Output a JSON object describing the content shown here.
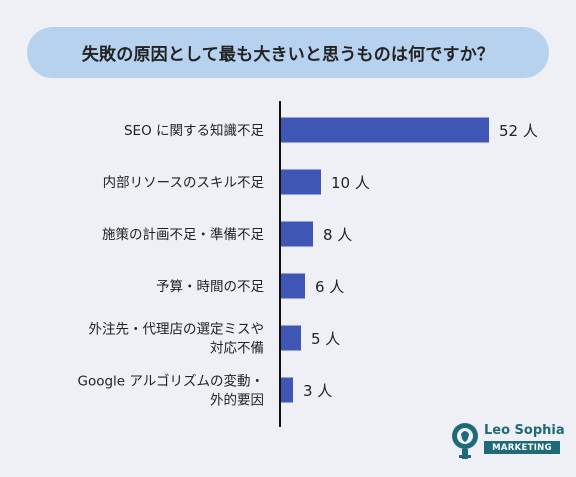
{
  "title": "失敗の原因として最も大きいと思うものは何ですか？",
  "chart_data": {
    "type": "bar",
    "orientation": "horizontal",
    "categories": [
      [
        "SEO に関する知識不足"
      ],
      [
        "内部リソースのスキル不足"
      ],
      [
        "施策の計画不足・準備不足"
      ],
      [
        "予算・時間の不足"
      ],
      [
        "外注先・代理店の選定ミスや",
        "対応不備"
      ],
      [
        "Google アルゴリズムの変動・",
        "外的要因"
      ]
    ],
    "values": [
      52,
      10,
      8,
      6,
      5,
      3
    ],
    "value_labels": [
      "52 人",
      "10 人",
      "8 人",
      "6 人",
      "5 人",
      "3 人"
    ],
    "unit": "人",
    "xlim": [
      0,
      60
    ],
    "grid": false,
    "bar_color": "#3f56b5"
  },
  "logo": {
    "name": "Leo Sophia",
    "tag": "MARKETING",
    "color": "#1e6b77"
  }
}
